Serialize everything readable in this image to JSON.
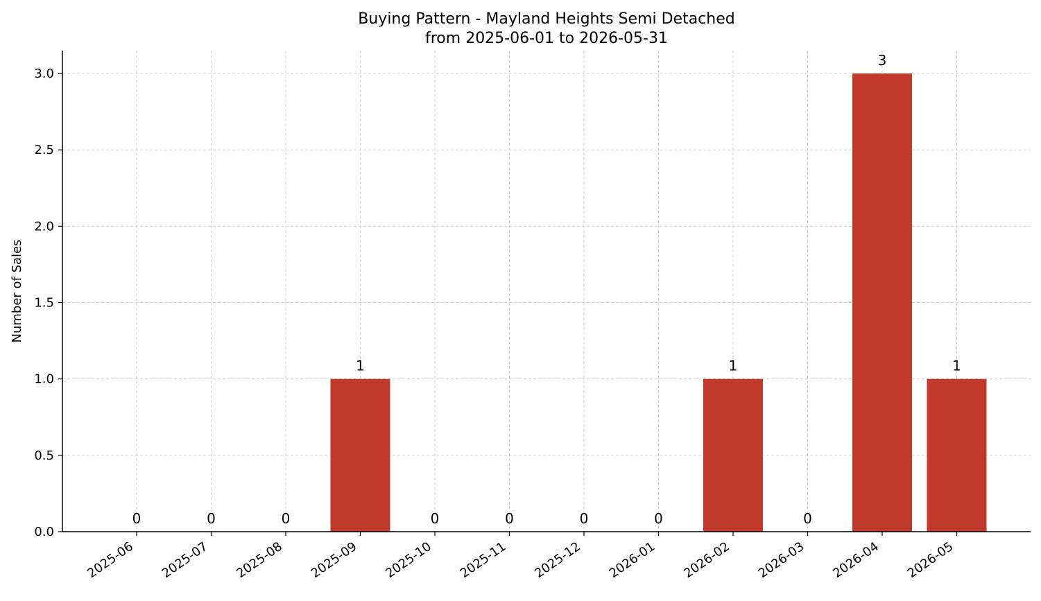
{
  "chart_data": {
    "type": "bar",
    "title_line1": "Buying Pattern - Mayland Heights Semi Detached",
    "title_line2": "from 2025-06-01 to 2026-05-31",
    "xlabel": "",
    "ylabel": "Number of Sales",
    "categories": [
      "2025-06",
      "2025-07",
      "2025-08",
      "2025-09",
      "2025-10",
      "2025-11",
      "2025-12",
      "2026-01",
      "2026-02",
      "2026-03",
      "2026-04",
      "2026-05"
    ],
    "values": [
      0,
      0,
      0,
      1,
      0,
      0,
      0,
      0,
      1,
      0,
      3,
      1
    ],
    "data_labels": [
      "0",
      "0",
      "0",
      "1",
      "0",
      "0",
      "0",
      "0",
      "1",
      "0",
      "3",
      "1"
    ],
    "ylim": [
      0,
      3.15
    ],
    "yticks": [
      0,
      0.5,
      1.0,
      1.5,
      2.0,
      2.5,
      3.0
    ],
    "ytick_labels": [
      "0.0",
      "0.5",
      "1.0",
      "1.5",
      "2.0",
      "2.5",
      "3.0"
    ],
    "grid": true,
    "bar_color": "#c0392b"
  }
}
